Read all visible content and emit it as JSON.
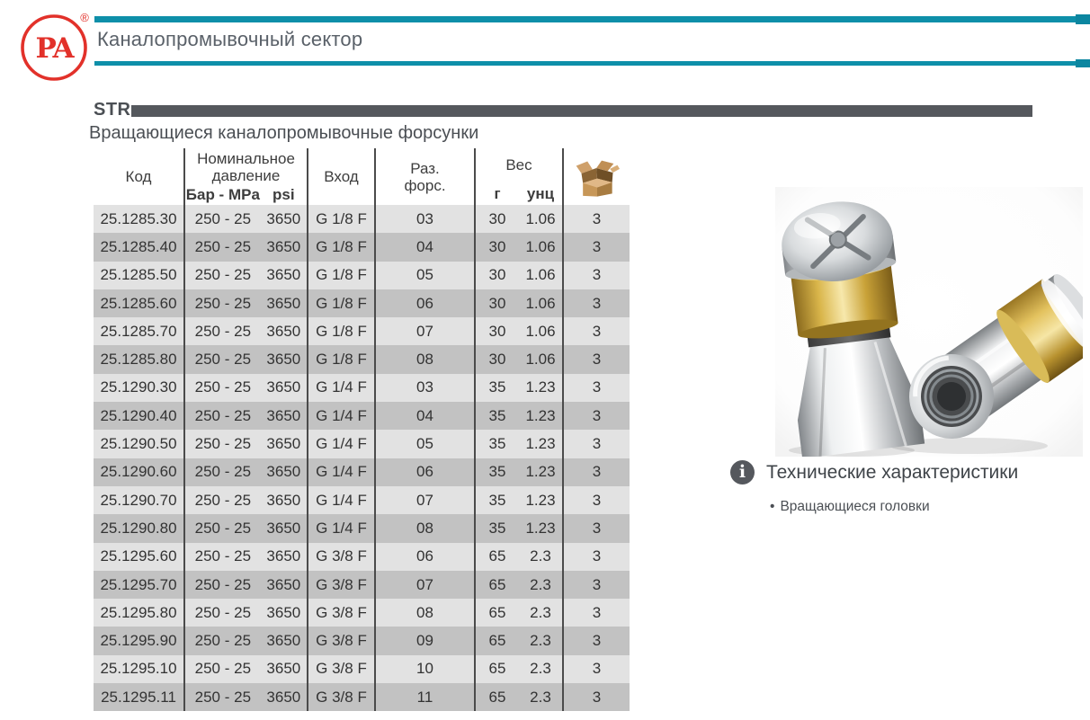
{
  "page": {
    "logo_text": "PA",
    "registered_mark": "®",
    "header_title": "Каналопромывочный сектор",
    "section_code": "STR",
    "section_subtitle": "Вращающиеся каналопромывочные форсунки"
  },
  "colors": {
    "teal": "#0e8fa9",
    "logo_red": "#e2312a",
    "bar_gray": "#55585d",
    "row_light": "#e2e2e2",
    "row_dark": "#c2c2c2"
  },
  "table": {
    "headers": {
      "code": "Код",
      "pressure_line1": "Номинальное",
      "pressure_line2": "давление",
      "pressure_unit_bar": "Бар - MPa",
      "pressure_unit_psi": "psi",
      "inlet": "Вход",
      "nozzle_line1": "Раз.",
      "nozzle_line2": "форс.",
      "weight": "Вес",
      "weight_unit_g": "г",
      "weight_unit_oz": "унц"
    },
    "rows": [
      {
        "code": "25.1285.30",
        "pressure": [
          "250 - 25",
          "3650"
        ],
        "inlet": "G 1/8 F",
        "nozzle": "03",
        "weight": [
          "30",
          "1.06"
        ],
        "pack": "3"
      },
      {
        "code": "25.1285.40",
        "pressure": [
          "250 - 25",
          "3650"
        ],
        "inlet": "G 1/8 F",
        "nozzle": "04",
        "weight": [
          "30",
          "1.06"
        ],
        "pack": "3"
      },
      {
        "code": "25.1285.50",
        "pressure": [
          "250 - 25",
          "3650"
        ],
        "inlet": "G 1/8 F",
        "nozzle": "05",
        "weight": [
          "30",
          "1.06"
        ],
        "pack": "3"
      },
      {
        "code": "25.1285.60",
        "pressure": [
          "250 - 25",
          "3650"
        ],
        "inlet": "G 1/8 F",
        "nozzle": "06",
        "weight": [
          "30",
          "1.06"
        ],
        "pack": "3"
      },
      {
        "code": "25.1285.70",
        "pressure": [
          "250 - 25",
          "3650"
        ],
        "inlet": "G 1/8 F",
        "nozzle": "07",
        "weight": [
          "30",
          "1.06"
        ],
        "pack": "3"
      },
      {
        "code": "25.1285.80",
        "pressure": [
          "250 - 25",
          "3650"
        ],
        "inlet": "G 1/8 F",
        "nozzle": "08",
        "weight": [
          "30",
          "1.06"
        ],
        "pack": "3"
      },
      {
        "code": "25.1290.30",
        "pressure": [
          "250 - 25",
          "3650"
        ],
        "inlet": "G 1/4 F",
        "nozzle": "03",
        "weight": [
          "35",
          "1.23"
        ],
        "pack": "3"
      },
      {
        "code": "25.1290.40",
        "pressure": [
          "250 - 25",
          "3650"
        ],
        "inlet": "G 1/4 F",
        "nozzle": "04",
        "weight": [
          "35",
          "1.23"
        ],
        "pack": "3"
      },
      {
        "code": "25.1290.50",
        "pressure": [
          "250 - 25",
          "3650"
        ],
        "inlet": "G 1/4 F",
        "nozzle": "05",
        "weight": [
          "35",
          "1.23"
        ],
        "pack": "3"
      },
      {
        "code": "25.1290.60",
        "pressure": [
          "250 - 25",
          "3650"
        ],
        "inlet": "G 1/4 F",
        "nozzle": "06",
        "weight": [
          "35",
          "1.23"
        ],
        "pack": "3"
      },
      {
        "code": "25.1290.70",
        "pressure": [
          "250 - 25",
          "3650"
        ],
        "inlet": "G 1/4 F",
        "nozzle": "07",
        "weight": [
          "35",
          "1.23"
        ],
        "pack": "3"
      },
      {
        "code": "25.1290.80",
        "pressure": [
          "250 - 25",
          "3650"
        ],
        "inlet": "G 1/4 F",
        "nozzle": "08",
        "weight": [
          "35",
          "1.23"
        ],
        "pack": "3"
      },
      {
        "code": "25.1295.60",
        "pressure": [
          "250 - 25",
          "3650"
        ],
        "inlet": "G 3/8 F",
        "nozzle": "06",
        "weight": [
          "65",
          "2.3"
        ],
        "pack": "3"
      },
      {
        "code": "25.1295.70",
        "pressure": [
          "250 - 25",
          "3650"
        ],
        "inlet": "G 3/8 F",
        "nozzle": "07",
        "weight": [
          "65",
          "2.3"
        ],
        "pack": "3"
      },
      {
        "code": "25.1295.80",
        "pressure": [
          "250 - 25",
          "3650"
        ],
        "inlet": "G 3/8 F",
        "nozzle": "08",
        "weight": [
          "65",
          "2.3"
        ],
        "pack": "3"
      },
      {
        "code": "25.1295.90",
        "pressure": [
          "250 - 25",
          "3650"
        ],
        "inlet": "G 3/8 F",
        "nozzle": "09",
        "weight": [
          "65",
          "2.3"
        ],
        "pack": "3"
      },
      {
        "code": "25.1295.10",
        "pressure": [
          "250 - 25",
          "3650"
        ],
        "inlet": "G 3/8 F",
        "nozzle": "10",
        "weight": [
          "65",
          "2.3"
        ],
        "pack": "3"
      },
      {
        "code": "25.1295.11",
        "pressure": [
          "250 - 25",
          "3650"
        ],
        "inlet": "G 3/8 F",
        "nozzle": "11",
        "weight": [
          "65",
          "2.3"
        ],
        "pack": "3"
      }
    ]
  },
  "info_panel": {
    "icon_glyph": "i",
    "title": "Технические характеристики",
    "bullet_char": "•",
    "bullets": [
      "Вращающиеся головки"
    ]
  }
}
